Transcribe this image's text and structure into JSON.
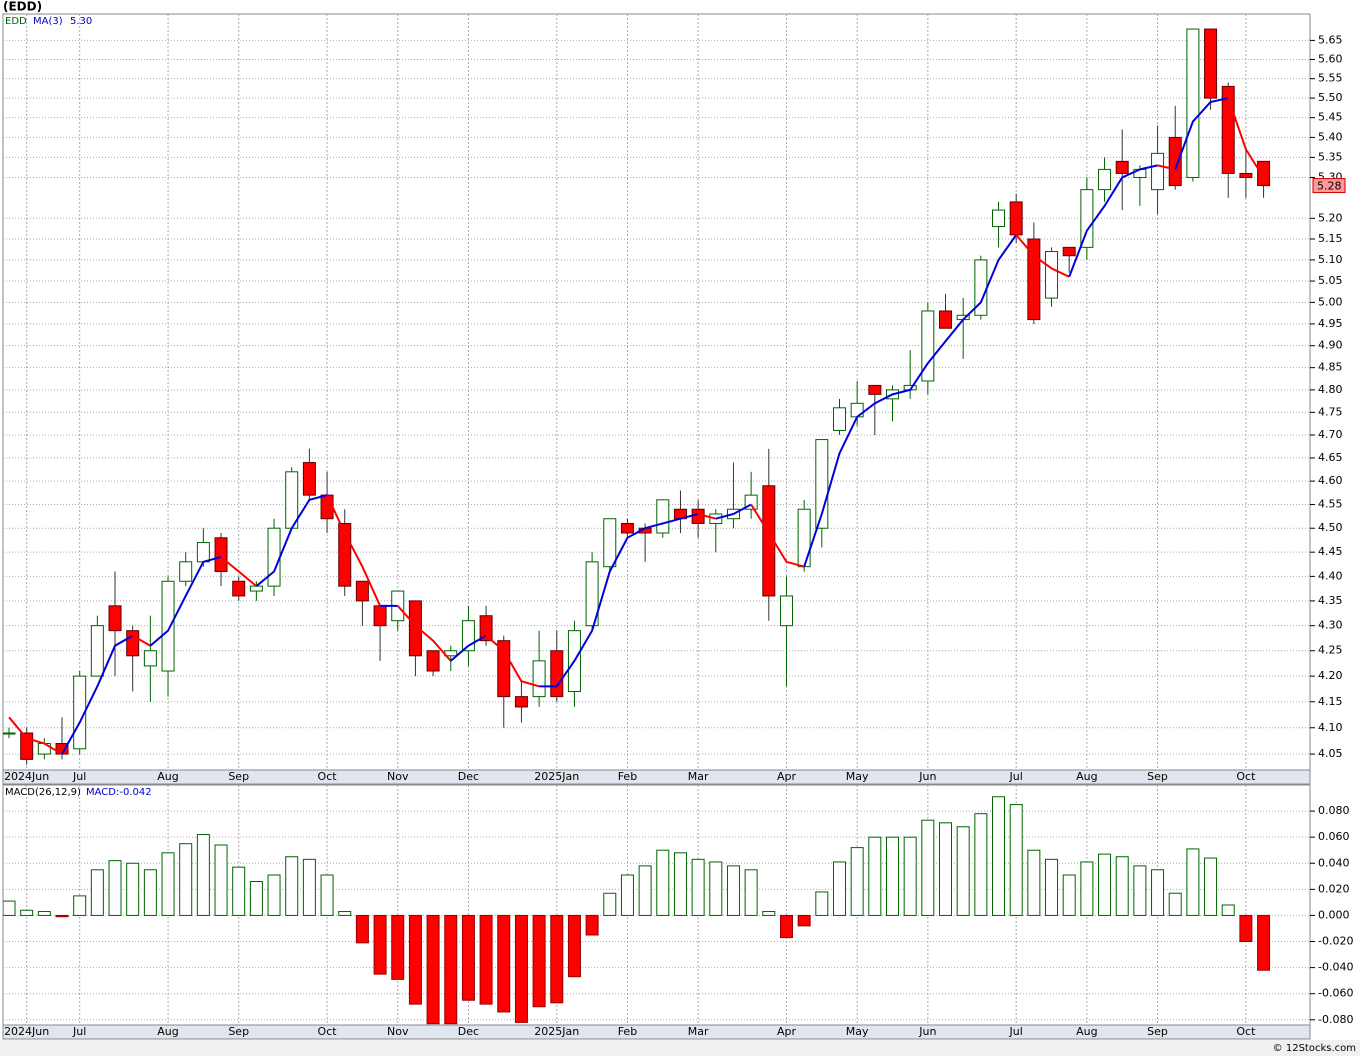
{
  "chart_data": [
    {
      "type": "candlestick",
      "title": "(EDD)",
      "name": "EDD",
      "log": true,
      "grid": true,
      "up_color": "#006400",
      "down_color": "#ff0000",
      "categories": [
        null,
        "2024Jun",
        null,
        null,
        "Jul",
        null,
        null,
        null,
        null,
        "Aug",
        null,
        null,
        null,
        "Sep",
        null,
        null,
        null,
        null,
        "Oct",
        null,
        null,
        null,
        "Nov",
        null,
        null,
        null,
        "Dec",
        null,
        null,
        null,
        null,
        "2025Jan",
        null,
        null,
        null,
        "Feb",
        null,
        null,
        null,
        "Mar",
        null,
        null,
        null,
        null,
        "Apr",
        null,
        null,
        null,
        "May",
        null,
        null,
        null,
        "Jun",
        null,
        null,
        null,
        null,
        "Jul",
        null,
        null,
        null,
        "Aug",
        null,
        null,
        null,
        "Sep",
        null,
        null,
        null,
        null,
        "Oct",
        null
      ],
      "open": [
        4.09,
        4.09,
        4.05,
        4.07,
        4.06,
        4.2,
        4.34,
        4.29,
        4.22,
        4.21,
        4.39,
        4.43,
        4.48,
        4.39,
        4.37,
        4.38,
        4.5,
        4.64,
        4.57,
        4.51,
        4.39,
        4.34,
        4.31,
        4.35,
        4.25,
        4.24,
        4.25,
        4.32,
        4.27,
        4.16,
        4.16,
        4.25,
        4.17,
        4.3,
        4.42,
        4.51,
        4.5,
        4.49,
        4.54,
        4.54,
        4.51,
        4.52,
        4.54,
        4.59,
        4.3,
        4.42,
        4.5,
        4.71,
        4.74,
        4.81,
        4.78,
        4.8,
        4.82,
        4.98,
        4.96,
        4.97,
        5.18,
        5.24,
        5.15,
        5.01,
        5.13,
        5.13,
        5.27,
        5.34,
        5.3,
        5.27,
        5.4,
        5.3,
        5.68,
        5.53,
        5.31,
        5.34
      ],
      "high": [
        4.1,
        4.1,
        4.08,
        4.12,
        4.21,
        4.32,
        4.41,
        4.3,
        4.32,
        4.4,
        4.45,
        4.5,
        4.49,
        4.4,
        4.39,
        4.52,
        4.63,
        4.67,
        4.62,
        4.54,
        4.39,
        4.34,
        4.37,
        4.35,
        4.25,
        4.26,
        4.34,
        4.34,
        4.28,
        4.19,
        4.29,
        4.29,
        4.31,
        4.45,
        4.52,
        4.52,
        4.51,
        4.56,
        4.58,
        4.56,
        4.54,
        4.64,
        4.62,
        4.67,
        4.4,
        4.56,
        4.69,
        4.78,
        4.82,
        4.81,
        4.81,
        4.89,
        5.0,
        5.02,
        5.01,
        5.11,
        5.24,
        5.26,
        5.19,
        5.13,
        5.13,
        5.3,
        5.35,
        5.42,
        5.33,
        5.43,
        5.48,
        5.68,
        5.68,
        5.54,
        5.37,
        5.34
      ],
      "low": [
        4.08,
        4.03,
        4.04,
        4.04,
        4.05,
        4.2,
        4.2,
        4.17,
        4.15,
        4.16,
        4.38,
        4.42,
        4.38,
        4.35,
        4.35,
        4.36,
        4.5,
        4.56,
        4.49,
        4.36,
        4.3,
        4.23,
        4.29,
        4.2,
        4.2,
        4.21,
        4.22,
        4.26,
        4.1,
        4.11,
        4.14,
        4.15,
        4.14,
        4.29,
        4.41,
        4.48,
        4.43,
        4.48,
        4.49,
        4.48,
        4.45,
        4.5,
        4.52,
        4.31,
        4.18,
        4.41,
        4.46,
        4.7,
        4.72,
        4.7,
        4.73,
        4.78,
        4.79,
        4.94,
        4.87,
        4.96,
        5.13,
        5.14,
        4.95,
        4.99,
        5.07,
        5.1,
        5.24,
        5.22,
        5.23,
        5.21,
        5.27,
        5.29,
        5.47,
        5.25,
        5.25,
        5.25
      ],
      "close": [
        4.09,
        4.04,
        4.07,
        4.05,
        4.2,
        4.3,
        4.29,
        4.24,
        4.25,
        4.39,
        4.43,
        4.47,
        4.41,
        4.36,
        4.38,
        4.5,
        4.62,
        4.57,
        4.52,
        4.38,
        4.35,
        4.3,
        4.37,
        4.24,
        4.21,
        4.25,
        4.31,
        4.27,
        4.16,
        4.14,
        4.23,
        4.16,
        4.29,
        4.43,
        4.52,
        4.49,
        4.49,
        4.56,
        4.52,
        4.51,
        4.53,
        4.54,
        4.57,
        4.36,
        4.36,
        4.54,
        4.69,
        4.76,
        4.77,
        4.79,
        4.8,
        4.81,
        4.98,
        4.94,
        4.97,
        5.1,
        5.22,
        5.16,
        4.96,
        5.12,
        5.11,
        5.27,
        5.32,
        5.31,
        5.32,
        5.36,
        5.28,
        5.68,
        5.5,
        5.31,
        5.3,
        5.28
      ],
      "ma": {
        "name": "MA(3)",
        "up_color": "#0000dd",
        "down_color": "#ff0000",
        "value_label": "5.30",
        "values": [
          4.12,
          4.08,
          4.07,
          4.05,
          4.11,
          4.18,
          4.26,
          4.28,
          4.26,
          4.29,
          4.36,
          4.43,
          4.44,
          4.41,
          4.38,
          4.41,
          4.5,
          4.56,
          4.57,
          4.49,
          4.42,
          4.34,
          4.34,
          4.3,
          4.27,
          4.23,
          4.26,
          4.28,
          4.25,
          4.19,
          4.18,
          4.18,
          4.23,
          4.29,
          4.41,
          4.48,
          4.5,
          4.51,
          4.52,
          4.53,
          4.52,
          4.53,
          4.55,
          4.49,
          4.43,
          4.42,
          4.53,
          4.66,
          4.74,
          4.77,
          4.79,
          4.8,
          4.86,
          4.91,
          4.96,
          5.0,
          5.1,
          5.16,
          5.11,
          5.08,
          5.06,
          5.17,
          5.23,
          5.3,
          5.32,
          5.33,
          5.32,
          5.44,
          5.49,
          5.5,
          5.37,
          5.3
        ]
      },
      "last_price": 5.28,
      "ylim": [
        4.02,
        5.72
      ],
      "yticks": [
        4.05,
        {
          "value": 4.1,
          "label": "4.10"
        },
        4.15,
        {
          "value": 4.2,
          "label": "4.20"
        },
        4.25,
        {
          "value": 4.3,
          "label": "4.30"
        },
        4.35,
        {
          "value": 4.4,
          "label": "4.40"
        },
        4.45,
        {
          "value": 4.5,
          "label": "4.50"
        },
        4.55,
        {
          "value": 4.6,
          "label": "4.60"
        },
        4.65,
        {
          "value": 4.7,
          "label": "4.70"
        },
        4.75,
        {
          "value": 4.8,
          "label": "4.80"
        },
        4.85,
        {
          "value": 4.9,
          "label": "4.90"
        },
        4.95,
        {
          "value": 5,
          "label": "5.00"
        },
        5.05,
        {
          "value": 5.1,
          "label": "5.10"
        },
        5.15,
        {
          "value": 5.2,
          "label": "5.20"
        },
        {
          "value": 5.3,
          "label": "5.30"
        },
        5.35,
        {
          "value": 5.4,
          "label": "5.40"
        },
        5.45,
        {
          "value": 5.5,
          "label": "5.50"
        },
        5.55,
        {
          "value": 5.6,
          "label": "5.60"
        },
        5.65
      ]
    },
    {
      "type": "bar",
      "title": "MACD(26,12,9)",
      "value_label": "MACD:-0.042",
      "grid": true,
      "up_color": "#006400",
      "down_color": "#ff0000",
      "categories": [
        null,
        "2024Jun",
        null,
        null,
        "Jul",
        null,
        null,
        null,
        null,
        "Aug",
        null,
        null,
        null,
        "Sep",
        null,
        null,
        null,
        null,
        "Oct",
        null,
        null,
        null,
        "Nov",
        null,
        null,
        null,
        "Dec",
        null,
        null,
        null,
        null,
        "2025Jan",
        null,
        null,
        null,
        "Feb",
        null,
        null,
        null,
        "Mar",
        null,
        null,
        null,
        null,
        "Apr",
        null,
        null,
        null,
        "May",
        null,
        null,
        null,
        "Jun",
        null,
        null,
        null,
        null,
        "Jul",
        null,
        null,
        null,
        "Aug",
        null,
        null,
        null,
        "Sep",
        null,
        null,
        null,
        null,
        "Oct",
        null
      ],
      "values": [
        0.011,
        0.004,
        0.003,
        -0.001,
        0.015,
        0.035,
        0.042,
        0.04,
        0.035,
        0.048,
        0.055,
        0.062,
        0.054,
        0.037,
        0.026,
        0.031,
        0.045,
        0.043,
        0.031,
        0.003,
        -0.021,
        -0.045,
        -0.049,
        -0.068,
        -0.083,
        -0.083,
        -0.065,
        -0.068,
        -0.074,
        -0.082,
        -0.07,
        -0.067,
        -0.047,
        -0.015,
        0.017,
        0.031,
        0.038,
        0.05,
        0.048,
        0.043,
        0.041,
        0.038,
        0.035,
        0.003,
        -0.017,
        -0.008,
        0.018,
        0.041,
        0.052,
        0.06,
        0.06,
        0.06,
        0.073,
        0.071,
        0.068,
        0.078,
        0.091,
        0.085,
        0.05,
        0.043,
        0.031,
        0.041,
        0.047,
        0.045,
        0.038,
        0.035,
        0.017,
        0.051,
        0.044,
        0.008,
        -0.02,
        -0.042
      ],
      "ylim": [
        -0.084,
        0.1
      ],
      "yticks": [
        {
          "value": 0.08,
          "label": "0.080"
        },
        {
          "value": 0.06,
          "label": "0.060"
        },
        {
          "value": 0.04,
          "label": "0.040"
        },
        {
          "value": 0.02,
          "label": "0.020"
        },
        {
          "value": 0,
          "label": "0.000"
        },
        {
          "value": -0.02,
          "label": "-0.020"
        },
        {
          "value": -0.04,
          "label": "-0.040"
        },
        {
          "value": -0.06,
          "label": "-0.060"
        },
        {
          "value": -0.08,
          "label": "-0.080"
        }
      ]
    }
  ],
  "footer": "© 12Stocks.com"
}
